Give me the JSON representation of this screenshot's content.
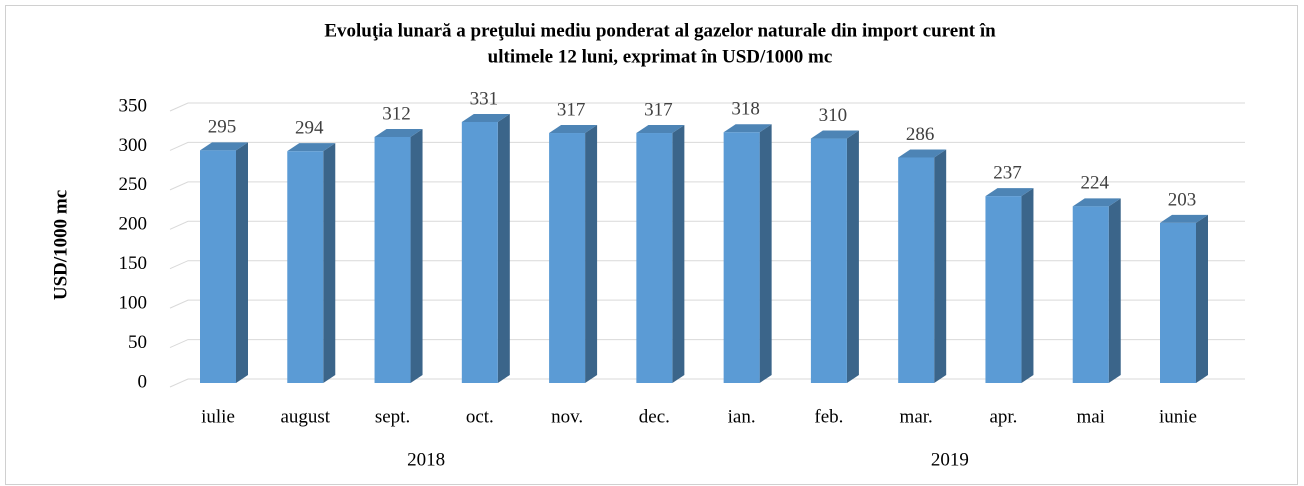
{
  "chart_data": {
    "type": "bar3d",
    "title": [
      "Evoluţia lunară a preţului mediu ponderat al gazelor naturale din import curent în",
      "ultimele 12 luni, exprimat în USD/1000 mc"
    ],
    "y_label": "USD/1000 mc",
    "categories": [
      "iulie",
      "august",
      "sept.",
      "oct.",
      "nov.",
      "dec.",
      "ian.",
      "feb.",
      "mar.",
      "apr.",
      "mai",
      "iunie"
    ],
    "groups": [
      "2018",
      "2019"
    ],
    "values": [
      295,
      294,
      312,
      331,
      317,
      317,
      318,
      310,
      286,
      237,
      224,
      203
    ],
    "color": "#5b9bd5",
    "ylim": [
      0,
      350
    ],
    "yticks": [
      0,
      50,
      100,
      150,
      200,
      250,
      300,
      350
    ],
    "grid": true
  }
}
